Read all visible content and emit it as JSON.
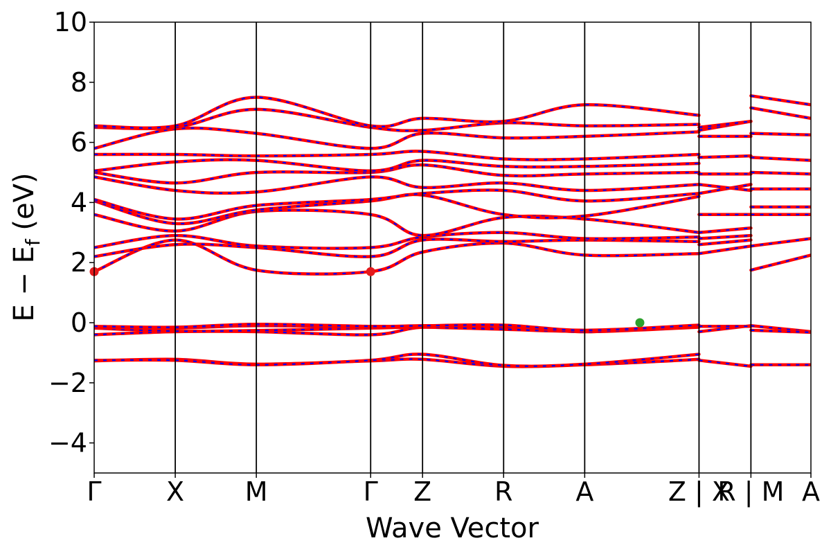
{
  "chart_data": {
    "type": "line",
    "title": "",
    "xlabel": "Wave Vector",
    "ylabel_parts": {
      "main": "E − E",
      "sub": "f",
      "unit": " (eV)"
    },
    "ylim": [
      -5,
      10
    ],
    "yticks": [
      {
        "value": -4,
        "label": "−4"
      },
      {
        "value": -2,
        "label": "−2"
      },
      {
        "value": 0,
        "label": "0"
      },
      {
        "value": 2,
        "label": "2"
      },
      {
        "value": 4,
        "label": "4"
      },
      {
        "value": 6,
        "label": "6"
      },
      {
        "value": 8,
        "label": "8"
      },
      {
        "value": 10,
        "label": "10"
      }
    ],
    "grid": false,
    "xlim": [
      0,
      8.84
    ],
    "kpoints": [
      {
        "label": "Γ",
        "x": 0.0
      },
      {
        "label": "X",
        "x": 1.0
      },
      {
        "label": "M",
        "x": 2.0
      },
      {
        "label": "Γ",
        "x": 3.41
      },
      {
        "label": "Z",
        "x": 4.05
      },
      {
        "label": "R",
        "x": 5.05
      },
      {
        "label": "A",
        "x": 6.05
      },
      {
        "label": "Z | X",
        "x": 7.46
      },
      {
        "label": "R | M",
        "x": 8.1
      },
      {
        "label": "A",
        "x": 8.84
      }
    ],
    "band_colors": {
      "primary": "#ff0000",
      "overlay": "#0000ff"
    },
    "segments": [
      {
        "x": [
          0.0,
          1.0,
          2.0,
          3.41,
          4.05,
          5.05,
          6.05,
          7.46
        ],
        "bands": [
          [
            -1.27,
            -1.22,
            -1.38,
            -1.27,
            -1.22,
            -1.45,
            -1.4,
            -1.22
          ],
          [
            -1.25,
            -1.25,
            -1.4,
            -1.25,
            -1.05,
            -1.42,
            -1.38,
            -1.05
          ],
          [
            -0.4,
            -0.3,
            -0.3,
            -0.4,
            -0.15,
            -0.15,
            -0.3,
            -0.15
          ],
          [
            -0.18,
            -0.28,
            -0.26,
            -0.18,
            -0.15,
            -0.22,
            -0.28,
            -0.12
          ],
          [
            -0.15,
            -0.18,
            -0.1,
            -0.15,
            -0.12,
            -0.1,
            -0.3,
            -0.1
          ],
          [
            -0.12,
            -0.15,
            -0.05,
            -0.12,
            -0.1,
            -0.08,
            -0.25,
            -0.08
          ],
          [
            1.7,
            2.75,
            1.75,
            1.7,
            2.35,
            2.65,
            2.25,
            2.3
          ],
          [
            2.2,
            2.6,
            2.5,
            2.2,
            2.75,
            2.7,
            2.75,
            2.7
          ],
          [
            2.5,
            2.9,
            2.55,
            2.5,
            2.85,
            3.0,
            2.8,
            2.85
          ],
          [
            3.6,
            3.05,
            3.7,
            3.6,
            2.9,
            3.5,
            3.45,
            3.0
          ],
          [
            4.05,
            3.3,
            3.75,
            4.05,
            4.25,
            3.6,
            3.55,
            4.2
          ],
          [
            4.1,
            3.45,
            3.9,
            4.1,
            4.3,
            4.4,
            4.05,
            4.3
          ],
          [
            4.85,
            4.4,
            4.35,
            4.85,
            4.5,
            4.65,
            4.4,
            4.6
          ],
          [
            5.0,
            4.65,
            5.0,
            5.0,
            5.25,
            4.9,
            4.95,
            5.0
          ],
          [
            5.05,
            5.35,
            5.4,
            5.05,
            5.4,
            5.2,
            5.2,
            5.3
          ],
          [
            5.6,
            5.6,
            5.55,
            5.6,
            5.7,
            5.45,
            5.45,
            5.6
          ],
          [
            5.8,
            6.45,
            6.3,
            5.8,
            6.3,
            6.15,
            6.2,
            6.35
          ],
          [
            6.5,
            6.5,
            7.1,
            6.5,
            6.4,
            6.65,
            6.55,
            6.6
          ],
          [
            6.55,
            6.55,
            7.5,
            6.55,
            6.8,
            6.7,
            7.25,
            6.9
          ]
        ]
      },
      {
        "x": [
          7.46,
          8.1
        ],
        "bands": [
          [
            -1.25,
            -1.45
          ],
          [
            -0.3,
            -0.1
          ],
          [
            -0.12,
            -0.12
          ],
          [
            2.3,
            2.55
          ],
          [
            2.6,
            2.75
          ],
          [
            2.8,
            2.9
          ],
          [
            3.0,
            3.15
          ],
          [
            3.6,
            3.6
          ],
          [
            4.3,
            4.6
          ],
          [
            4.6,
            4.4
          ],
          [
            4.95,
            4.95
          ],
          [
            5.5,
            5.55
          ],
          [
            6.2,
            6.2
          ],
          [
            6.4,
            6.7
          ],
          [
            6.5,
            6.7
          ]
        ]
      },
      {
        "x": [
          8.1,
          8.84
        ],
        "bands": [
          [
            -1.4,
            -1.4
          ],
          [
            -0.1,
            -0.3
          ],
          [
            -0.25,
            -0.32
          ],
          [
            1.75,
            2.25
          ],
          [
            2.55,
            2.8
          ],
          [
            3.6,
            3.6
          ],
          [
            3.85,
            3.85
          ],
          [
            4.45,
            4.45
          ],
          [
            5.0,
            4.95
          ],
          [
            5.5,
            5.4
          ],
          [
            6.3,
            6.25
          ],
          [
            7.15,
            6.8
          ],
          [
            7.55,
            7.25
          ]
        ]
      }
    ],
    "markers": [
      {
        "x": 0.0,
        "y": 1.7,
        "color": "#e31a1c"
      },
      {
        "x": 3.41,
        "y": 1.7,
        "color": "#e31a1c"
      },
      {
        "x": 6.73,
        "y": 0.0,
        "color": "#2ca02c"
      }
    ]
  }
}
